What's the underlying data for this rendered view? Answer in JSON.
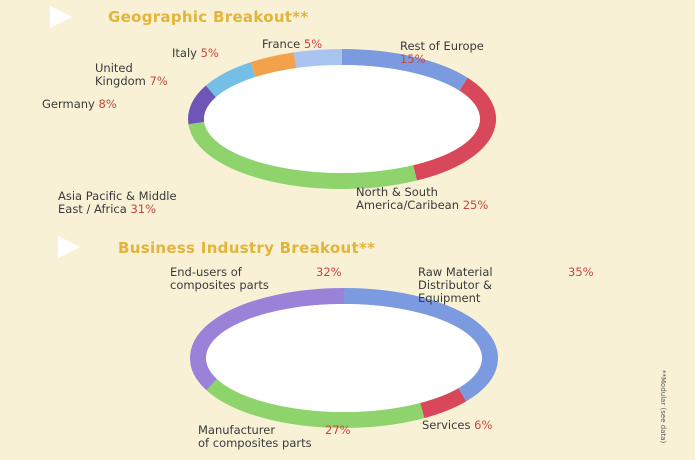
{
  "chart_data": [
    {
      "type": "pie",
      "title": "Geographic Breakout**",
      "slices": [
        {
          "label": "Rest of Europe",
          "value": 15,
          "pct_text": "15%",
          "color": "#7b9ae0"
        },
        {
          "label": "North & South\nAmerica/Caribean",
          "value": 25,
          "pct_text": "25%",
          "color": "#d9485a"
        },
        {
          "label": "Asia Pacific & Middle\nEast / Africa",
          "value": 31,
          "pct_text": "31%",
          "color": "#8fd36c"
        },
        {
          "label": "Germany",
          "value": 8,
          "pct_text": "8%",
          "color": "#6e55b8"
        },
        {
          "label": "United\nKingdom",
          "value": 7,
          "pct_text": "7%",
          "color": "#74bfe6"
        },
        {
          "label": "Italy",
          "value": 5,
          "pct_text": "5%",
          "color": "#f2a24a"
        },
        {
          "label": "France",
          "value": 5,
          "pct_text": "5%",
          "color": "#a9c4ef"
        }
      ]
    },
    {
      "type": "pie",
      "title": "Business Industry Breakout**",
      "slices": [
        {
          "label": "Raw Material\nDistributor &\nEquipment",
          "value": 35,
          "pct_text": "35%",
          "color": "#7b9ae0"
        },
        {
          "label": "Services",
          "value": 6,
          "pct_text": "6%",
          "color": "#d9485a"
        },
        {
          "label": "Manufacturer\nof composites parts",
          "value": 27,
          "pct_text": "27%",
          "color": "#8fd36c"
        },
        {
          "label": "End-users of\ncomposites parts",
          "value": 32,
          "pct_text": "32%",
          "color": "#9a82d8"
        }
      ]
    }
  ],
  "footnote": "**Modular (see data)"
}
